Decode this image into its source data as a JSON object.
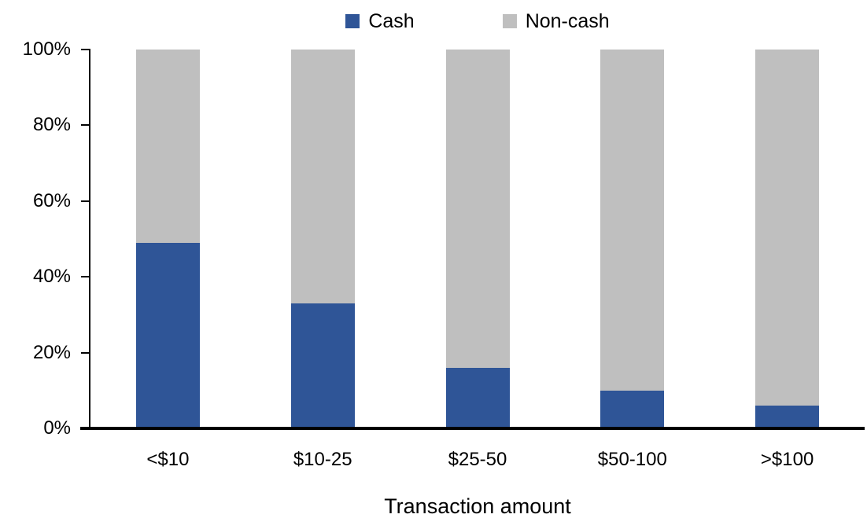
{
  "chart_data": {
    "type": "bar",
    "stacked": true,
    "orientation": "vertical",
    "title": "",
    "xlabel": "Transaction amount",
    "ylabel": "",
    "categories": [
      "<$10",
      "$10-25",
      "$25-50",
      "$50-100",
      ">$100"
    ],
    "series": [
      {
        "name": "Cash",
        "color": "#2F5597",
        "values": [
          49,
          33,
          16,
          10,
          6
        ]
      },
      {
        "name": "Non-cash",
        "color": "#BFBFBF",
        "values": [
          51,
          67,
          84,
          90,
          94
        ]
      }
    ],
    "ylim": [
      0,
      100
    ],
    "y_tick_values": [
      0,
      20,
      40,
      60,
      80,
      100
    ],
    "y_tick_labels": [
      "0%",
      "20%",
      "40%",
      "60%",
      "80%",
      "100%"
    ],
    "grid": false,
    "legend_position": "top-center",
    "axis_color": "#000000",
    "text_color": "#000000",
    "background_color": "#FFFFFF"
  }
}
